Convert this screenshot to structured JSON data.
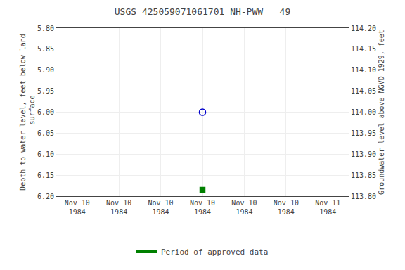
{
  "chart_data": {
    "type": "scatter",
    "title": "USGS 425059071061701 NH-PWW   49",
    "ylabel": "Depth to water level, feet below land\n surface",
    "y2label": "Groundwater level above NGVD 1929, feet",
    "categories": [
      "Nov 10\n1984",
      "Nov 10\n1984",
      "Nov 10\n1984",
      "Nov 10\n1984",
      "Nov 10\n1984",
      "Nov 10\n1984",
      "Nov 11\n1984"
    ],
    "ylim": [
      6.2,
      5.8
    ],
    "yticks": [
      {
        "value": 5.8,
        "label": "5.80"
      },
      5.85,
      {
        "value": 5.9,
        "label": "5.90"
      },
      5.95,
      {
        "value": 6.0,
        "label": "6.00"
      },
      6.05,
      {
        "value": 6.1,
        "label": "6.10"
      },
      6.15,
      {
        "value": 6.2,
        "label": "6.20"
      }
    ],
    "y2lim": [
      113.8,
      114.2
    ],
    "y2ticks": [
      {
        "value": 114.2,
        "label": "114.20"
      },
      114.15,
      {
        "value": 114.1,
        "label": "114.10"
      },
      114.05,
      {
        "value": 114.0,
        "label": "114.00"
      },
      113.95,
      {
        "value": 113.9,
        "label": "113.90"
      },
      113.85,
      {
        "value": 113.8,
        "label": "113.80"
      }
    ],
    "grid": true,
    "legend": "bottom",
    "series": [
      {
        "color": "#0000cc",
        "marker": "circle-open",
        "values": [
          null,
          null,
          null,
          6.0,
          null,
          null,
          null
        ]
      },
      {
        "color": "#008000",
        "marker": "square",
        "values": [
          null,
          null,
          null,
          6.185,
          null,
          null,
          null
        ]
      },
      {
        "name": "Period of approved data",
        "type": "line",
        "color": "#008000",
        "axis": "y2",
        "values": [
          null,
          null,
          null,
          null,
          null,
          null,
          null
        ]
      }
    ]
  }
}
